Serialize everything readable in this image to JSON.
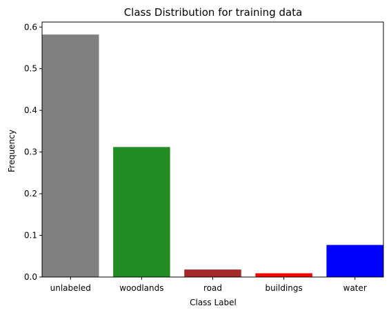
{
  "chart_data": {
    "type": "bar",
    "title": "Class Distribution for training data",
    "xlabel": "Class Label",
    "ylabel": "Frequency",
    "categories": [
      "unlabeled",
      "woodlands",
      "road",
      "buildings",
      "water"
    ],
    "values": [
      0.582,
      0.312,
      0.018,
      0.009,
      0.077
    ],
    "colors": [
      "#808080",
      "#228b22",
      "#a52a2a",
      "#ff0000",
      "#0000ff"
    ],
    "ylim": [
      0,
      0.612
    ],
    "yticks": [
      0.0,
      0.1,
      0.2,
      0.3,
      0.4,
      0.5,
      0.6
    ],
    "ytick_labels": [
      "0.0",
      "0.1",
      "0.2",
      "0.3",
      "0.4",
      "0.5",
      "0.6"
    ],
    "grid": false
  }
}
